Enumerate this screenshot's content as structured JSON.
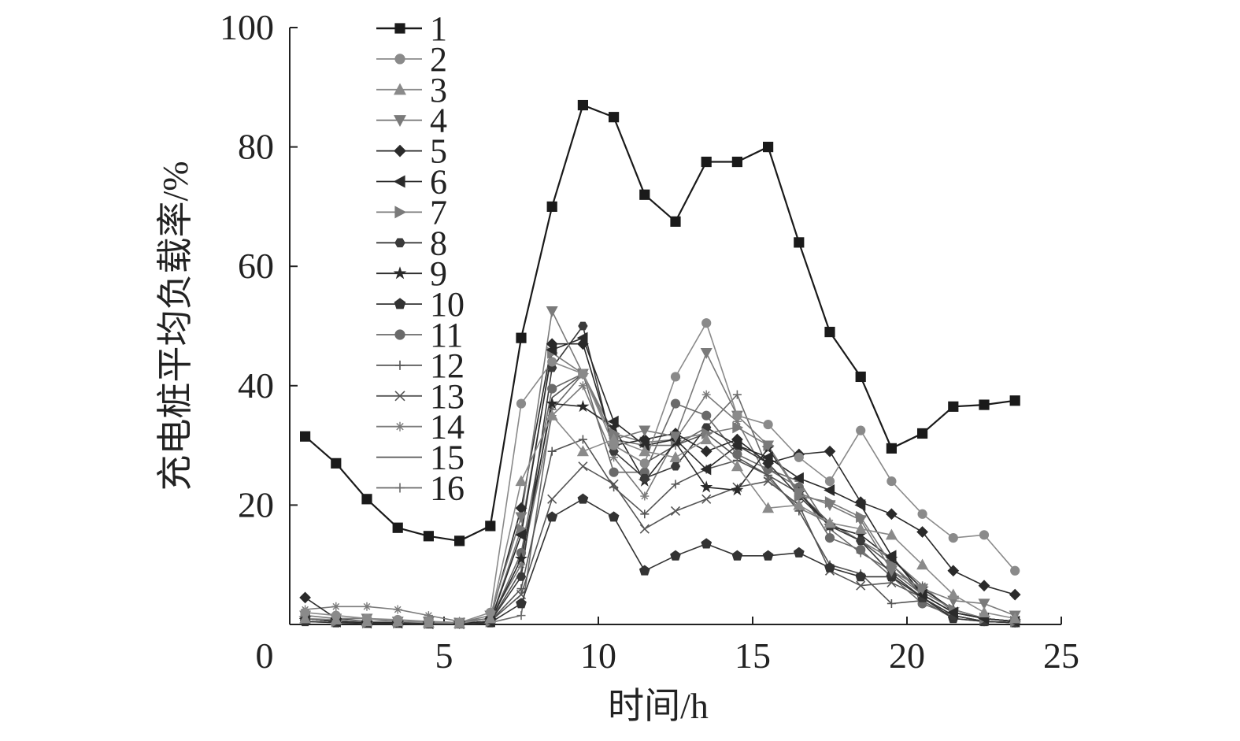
{
  "chart_data": {
    "type": "line",
    "title": "",
    "xlabel": "时间/h",
    "ylabel": "充电桩平均负载率/%",
    "xlim": [
      0,
      25
    ],
    "ylim": [
      0,
      100
    ],
    "x_ticks": [
      0,
      5,
      10,
      15,
      20,
      25
    ],
    "y_ticks": [
      20,
      40,
      60,
      80,
      100
    ],
    "grid": false,
    "legend_position": "top-left",
    "x": [
      0.5,
      1.5,
      2.5,
      3.5,
      4.5,
      5.5,
      6.5,
      7.5,
      8.5,
      9.5,
      10.5,
      11.5,
      12.5,
      13.5,
      14.5,
      15.5,
      16.5,
      17.5,
      18.5,
      19.5,
      20.5,
      21.5,
      22.5,
      23.5
    ],
    "series": [
      {
        "name": "1",
        "marker": "square",
        "color": "#1a1a1a",
        "values": [
          31.5,
          27,
          21,
          16.2,
          14.8,
          14,
          16.5,
          48,
          70,
          87,
          85,
          72,
          67.5,
          77.5,
          77.5,
          80,
          64,
          49,
          41.5,
          29.5,
          32,
          36.5,
          36.8,
          37.5
        ]
      },
      {
        "name": "2",
        "marker": "circle",
        "color": "#8a8a8a",
        "values": [
          2,
          1.5,
          1,
          0.8,
          0.5,
          0.3,
          2,
          37,
          44,
          42,
          30,
          27,
          41.5,
          50.5,
          35,
          33.5,
          28,
          24,
          32.5,
          24,
          18.5,
          14.5,
          15,
          9
        ]
      },
      {
        "name": "3",
        "marker": "triangle-up",
        "color": "#8a8a8a",
        "values": [
          1,
          0.8,
          0.5,
          0.5,
          0.3,
          0.2,
          1,
          24,
          35,
          29,
          31,
          29,
          28,
          31,
          26.5,
          19.5,
          20,
          17,
          16,
          15,
          10,
          5,
          2,
          1
        ]
      },
      {
        "name": "4",
        "marker": "triangle-down",
        "color": "#7a7a7a",
        "values": [
          1.5,
          1,
          1,
          0.5,
          0.5,
          0.3,
          1.5,
          18,
          52.5,
          42,
          31,
          32.5,
          31.5,
          45.5,
          35,
          30,
          22,
          20,
          17.5,
          9,
          6,
          4,
          3.5,
          1.5
        ]
      },
      {
        "name": "5",
        "marker": "diamond",
        "color": "#2a2a2a",
        "values": [
          4.5,
          1,
          0.5,
          0.5,
          0.3,
          0.2,
          1,
          19.5,
          47,
          47,
          30,
          31,
          32,
          29,
          31,
          27,
          28.5,
          29,
          20.5,
          18.5,
          15.5,
          9,
          6.5,
          5
        ]
      },
      {
        "name": "6",
        "marker": "triangle-left",
        "color": "#2a2a2a",
        "values": [
          1,
          0.5,
          0.3,
          0.3,
          0.2,
          0.2,
          0.5,
          15,
          46,
          48,
          34,
          30,
          31,
          26,
          30,
          28,
          24.5,
          22.5,
          20,
          11.5,
          5,
          2,
          1,
          0.5
        ]
      },
      {
        "name": "7",
        "marker": "triangle-right",
        "color": "#7a7a7a",
        "values": [
          1,
          0.5,
          0.3,
          0.3,
          0.2,
          0.2,
          0.5,
          16,
          45.5,
          42,
          32,
          30.5,
          31,
          32,
          33,
          30,
          21.5,
          20.5,
          18,
          10,
          5.5,
          2.5,
          1,
          0.5
        ]
      },
      {
        "name": "8",
        "marker": "hexagon",
        "color": "#3a3a3a",
        "values": [
          1,
          0.5,
          0.3,
          0.3,
          0.2,
          0.2,
          0.5,
          8,
          43,
          50,
          29,
          24.5,
          26.5,
          33,
          30,
          27,
          21.5,
          16.5,
          14,
          8.5,
          4.5,
          1.5,
          0.5,
          0.3
        ]
      },
      {
        "name": "9",
        "marker": "star",
        "color": "#2a2a2a",
        "values": [
          1,
          0.5,
          0.3,
          0.3,
          0.2,
          0.2,
          0.5,
          11,
          37,
          36.5,
          33,
          24,
          30.5,
          23,
          22.5,
          29.5,
          22,
          16.5,
          15,
          11,
          6,
          2.5,
          1,
          0.5
        ]
      },
      {
        "name": "10",
        "marker": "pentagon",
        "color": "#333333",
        "values": [
          0.5,
          0.3,
          0.2,
          0.2,
          0.1,
          0.1,
          0.3,
          3.5,
          18,
          21,
          18,
          9,
          11.5,
          13.5,
          11.5,
          11.5,
          12,
          9.5,
          8,
          8,
          4.5,
          1,
          0.5,
          0.3
        ]
      },
      {
        "name": "11",
        "marker": "circle",
        "color": "#6a6a6a",
        "values": [
          1,
          0.5,
          0.3,
          0.3,
          0.2,
          0.2,
          0.5,
          12,
          39.5,
          42,
          25.5,
          25.5,
          37,
          35,
          28.5,
          26,
          23,
          14.5,
          12.5,
          8,
          3.5,
          1.5,
          0.5,
          0.3
        ]
      },
      {
        "name": "12",
        "marker": "plus",
        "color": "#555555",
        "values": [
          1,
          0.5,
          0.3,
          0.3,
          0.2,
          0.2,
          0.5,
          6,
          29,
          31,
          23,
          18.5,
          23.5,
          26,
          27.5,
          25,
          19,
          10,
          8.5,
          3.5,
          4,
          1,
          0.5,
          0.3
        ]
      },
      {
        "name": "13",
        "marker": "x",
        "color": "#555555",
        "values": [
          1,
          0.5,
          0.3,
          0.3,
          0.2,
          0.2,
          0.5,
          5,
          21,
          26.5,
          23.5,
          16,
          19,
          21,
          23,
          24,
          20,
          9,
          6.5,
          7,
          4.5,
          1.5,
          0.5,
          0.3
        ]
      },
      {
        "name": "14",
        "marker": "asterisk",
        "color": "#7a7a7a",
        "values": [
          2.5,
          3,
          3,
          2.5,
          1.5,
          0.5,
          1,
          10,
          35,
          40,
          28,
          21.5,
          31,
          38.5,
          34,
          24.5,
          19.5,
          17,
          14,
          11,
          6.5,
          2,
          1,
          0.5
        ]
      },
      {
        "name": "15",
        "marker": "none",
        "color": "#555555",
        "values": [
          1,
          0.5,
          0.3,
          0.3,
          0.2,
          0.2,
          0.5,
          9,
          38,
          42,
          30,
          27,
          30,
          32,
          28,
          25,
          22,
          17,
          14,
          10,
          5,
          2,
          1,
          0.5
        ]
      },
      {
        "name": "16",
        "marker": "plus",
        "color": "#6a6a6a",
        "values": [
          0.5,
          0.3,
          0.2,
          0.2,
          0.1,
          0.1,
          0.3,
          1.5,
          36,
          42,
          31,
          30,
          30,
          33,
          38.5,
          26,
          24,
          16,
          12,
          9,
          5,
          2,
          1,
          0.5
        ]
      }
    ]
  }
}
